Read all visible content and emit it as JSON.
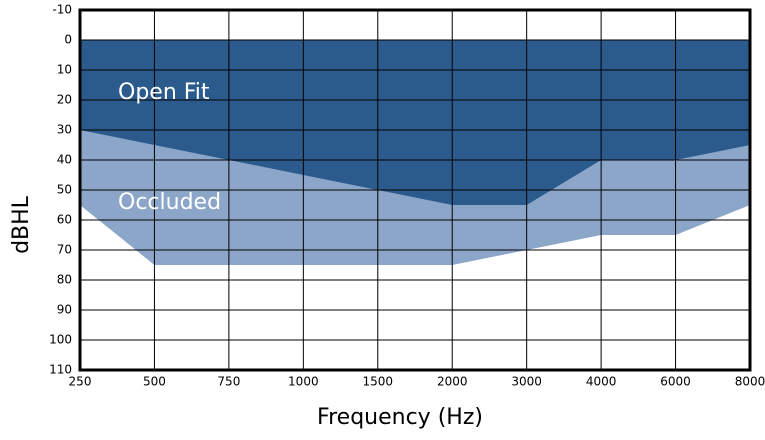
{
  "chart_data": {
    "type": "area",
    "xlabel": "Frequency (Hz)",
    "ylabel": "dBHL",
    "categories": [
      250,
      500,
      750,
      1000,
      1500,
      2000,
      3000,
      4000,
      6000,
      8000
    ],
    "series": [
      {
        "name": "Occluded",
        "color": "#8ba6c8",
        "values": [
          55,
          75,
          75,
          75,
          75,
          75,
          70,
          65,
          65,
          55
        ]
      },
      {
        "name": "Open Fit",
        "color": "#2b5b8d",
        "values": [
          30,
          35,
          40,
          45,
          50,
          55,
          55,
          40,
          40,
          35
        ]
      }
    ],
    "ylim": [
      -10,
      110
    ],
    "invert_y": true,
    "yticks": [
      -10,
      0,
      10,
      20,
      30,
      40,
      50,
      60,
      70,
      80,
      90,
      100,
      110
    ],
    "grid": true
  }
}
